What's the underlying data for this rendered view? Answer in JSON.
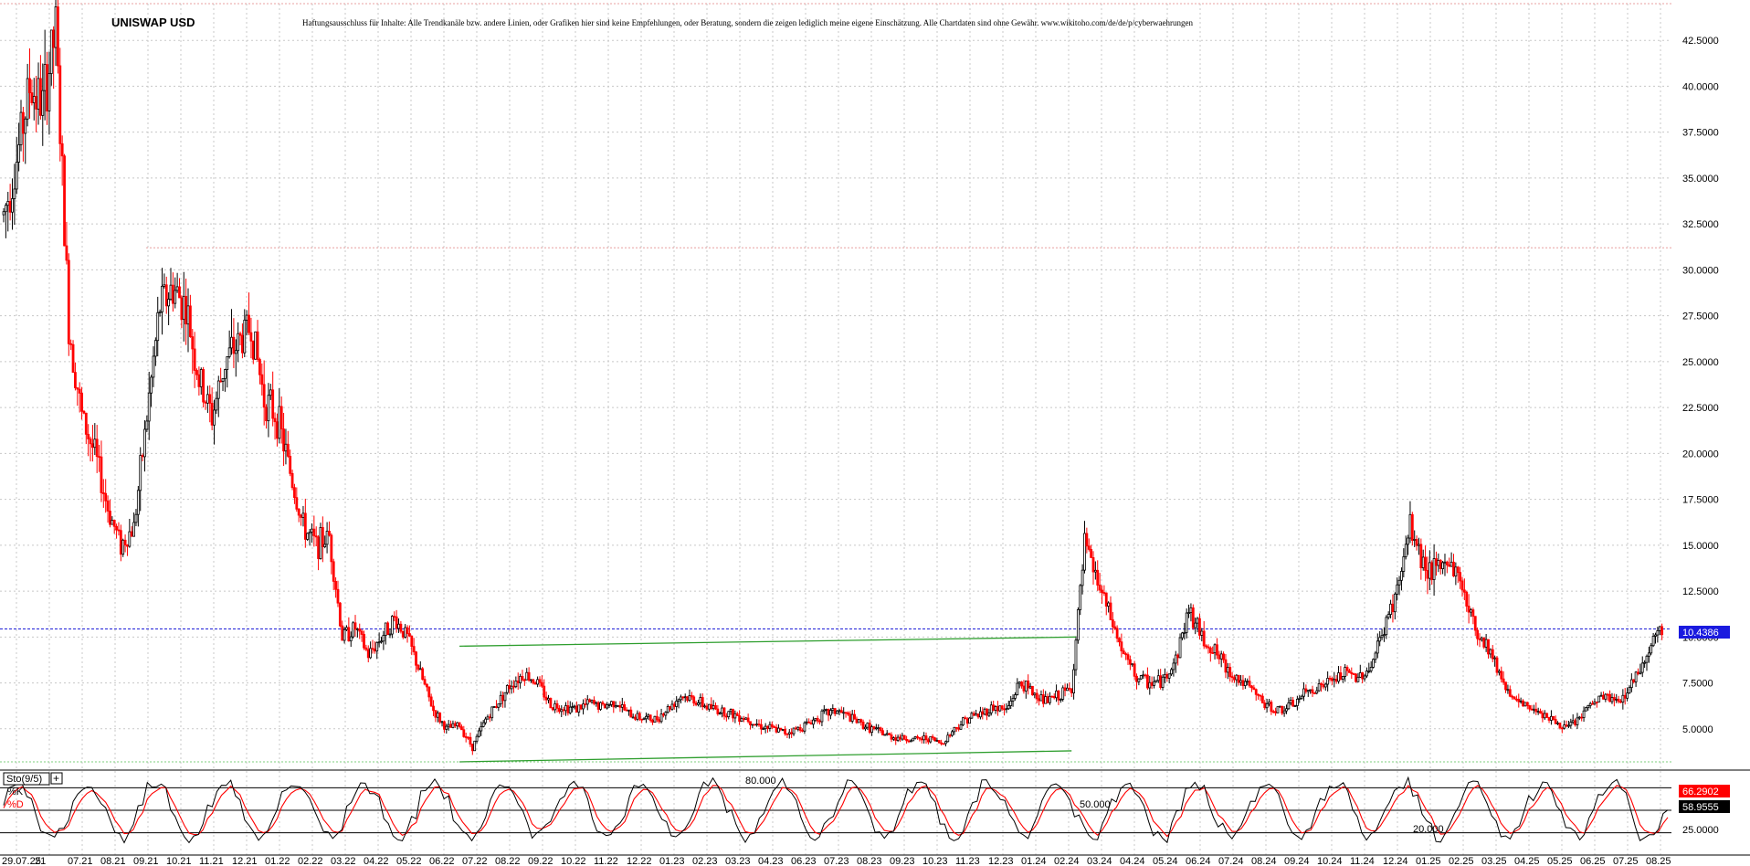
{
  "chart_data": {
    "type": "candlestick",
    "title": "UNISWAP USD",
    "disclaimer": "Haftungsausschluss für Inhalte: Alle Trendkanäle bzw. andere Linien, oder Grafiken hier sind keine Empfehlungen, oder Beratung, sondern die zeigen lediglich meine eigene Einschätzung. Alle Chartdaten sind ohne Gewähr.  www.wikitoho.com/de/de/p/cyberwaehrungen",
    "ylim": [
      3.0,
      44.5
    ],
    "y_ticks": [
      "42.5000",
      "40.0000",
      "37.5000",
      "35.0000",
      "32.5000",
      "30.0000",
      "27.5000",
      "25.0000",
      "22.5000",
      "20.0000",
      "17.5000",
      "15.0000",
      "12.5000",
      "10.0000",
      "7.5000",
      "5.0000"
    ],
    "x_labels": [
      "29.07.25",
      "21",
      "07.21",
      "08.21",
      "09.21",
      "10.21",
      "11.21",
      "12.21",
      "01.22",
      "02.22",
      "03.22",
      "04.22",
      "05.22",
      "06.22",
      "07.22",
      "08.22",
      "09.22",
      "10.22",
      "11.22",
      "12.22",
      "01.23",
      "02.23",
      "03.23",
      "04.23",
      "06.23",
      "07.23",
      "08.23",
      "09.23",
      "10.23",
      "11.23",
      "12.23",
      "01.24",
      "02.24",
      "03.24",
      "04.24",
      "05.24",
      "06.24",
      "07.24",
      "08.24",
      "09.24",
      "10.24",
      "11.24",
      "12.24",
      "01.25",
      "02.25",
      "03.25",
      "04.25",
      "05.25",
      "06.25",
      "07.25",
      "08.25"
    ],
    "last_price": "10.4386",
    "last_price_value": 10.4386,
    "resistance_level": 31.2,
    "green_level": 3.2,
    "price_path": [
      [
        0,
        33
      ],
      [
        6,
        36
      ],
      [
        12,
        40
      ],
      [
        18,
        39
      ],
      [
        24,
        43
      ],
      [
        30,
        27
      ],
      [
        36,
        22
      ],
      [
        42,
        20
      ],
      [
        48,
        17
      ],
      [
        54,
        15
      ],
      [
        60,
        16
      ],
      [
        66,
        22
      ],
      [
        72,
        28
      ],
      [
        78,
        29
      ],
      [
        84,
        28
      ],
      [
        90,
        24
      ],
      [
        96,
        22
      ],
      [
        102,
        25
      ],
      [
        108,
        26
      ],
      [
        114,
        27
      ],
      [
        120,
        23
      ],
      [
        126,
        22
      ],
      [
        132,
        19
      ],
      [
        138,
        16
      ],
      [
        144,
        15
      ],
      [
        150,
        15.5
      ],
      [
        156,
        10
      ],
      [
        162,
        10.5
      ],
      [
        168,
        9
      ],
      [
        174,
        10
      ],
      [
        180,
        11
      ],
      [
        186,
        10
      ],
      [
        192,
        8
      ],
      [
        198,
        6
      ],
      [
        204,
        5
      ],
      [
        210,
        5.2
      ],
      [
        216,
        4
      ],
      [
        222,
        5.5
      ],
      [
        228,
        6.5
      ],
      [
        234,
        7.5
      ],
      [
        240,
        8
      ],
      [
        246,
        7.5
      ],
      [
        252,
        6.3
      ],
      [
        258,
        6.2
      ],
      [
        264,
        6.1
      ],
      [
        270,
        6.4
      ],
      [
        276,
        6.2
      ],
      [
        282,
        6.5
      ],
      [
        288,
        5.8
      ],
      [
        294,
        5.6
      ],
      [
        300,
        5.5
      ],
      [
        306,
        6.1
      ],
      [
        312,
        6.8
      ],
      [
        318,
        6.6
      ],
      [
        324,
        6.2
      ],
      [
        330,
        6.0
      ],
      [
        336,
        5.8
      ],
      [
        342,
        5.6
      ],
      [
        348,
        5.2
      ],
      [
        354,
        5.0
      ],
      [
        360,
        4.8
      ],
      [
        366,
        5.0
      ],
      [
        372,
        5.4
      ],
      [
        378,
        5.8
      ],
      [
        384,
        6.0
      ],
      [
        390,
        5.6
      ],
      [
        396,
        5.2
      ],
      [
        402,
        4.9
      ],
      [
        408,
        4.6
      ],
      [
        414,
        4.5
      ],
      [
        420,
        4.4
      ],
      [
        426,
        4.5
      ],
      [
        432,
        4.2
      ],
      [
        438,
        5.0
      ],
      [
        444,
        5.6
      ],
      [
        450,
        5.8
      ],
      [
        456,
        6.2
      ],
      [
        462,
        6.0
      ],
      [
        468,
        7.5
      ],
      [
        474,
        7.0
      ],
      [
        480,
        6.5
      ],
      [
        486,
        6.8
      ],
      [
        492,
        7.2
      ],
      [
        498,
        15.0
      ],
      [
        504,
        13.0
      ],
      [
        510,
        11.0
      ],
      [
        516,
        9.0
      ],
      [
        522,
        7.8
      ],
      [
        528,
        7.5
      ],
      [
        534,
        7.6
      ],
      [
        540,
        8.8
      ],
      [
        546,
        11.5
      ],
      [
        552,
        10.0
      ],
      [
        558,
        9.2
      ],
      [
        564,
        8.2
      ],
      [
        570,
        7.6
      ],
      [
        576,
        7.0
      ],
      [
        582,
        6.2
      ],
      [
        588,
        6.0
      ],
      [
        594,
        6.3
      ],
      [
        600,
        7.0
      ],
      [
        606,
        7.3
      ],
      [
        612,
        7.6
      ],
      [
        618,
        8.0
      ],
      [
        624,
        7.8
      ],
      [
        630,
        8.4
      ],
      [
        636,
        10.5
      ],
      [
        642,
        12.5
      ],
      [
        648,
        16.0
      ],
      [
        654,
        14.0
      ],
      [
        660,
        13.5
      ],
      [
        666,
        14.2
      ],
      [
        672,
        12.8
      ],
      [
        678,
        10.4
      ],
      [
        684,
        9.5
      ],
      [
        690,
        7.8
      ],
      [
        696,
        6.5
      ],
      [
        702,
        6.2
      ],
      [
        708,
        6.0
      ],
      [
        714,
        5.4
      ],
      [
        720,
        5.0
      ],
      [
        726,
        5.6
      ],
      [
        732,
        6.4
      ],
      [
        738,
        6.8
      ],
      [
        744,
        6.4
      ],
      [
        750,
        7.5
      ],
      [
        756,
        8.8
      ],
      [
        762,
        10.4
      ]
    ],
    "support_line": {
      "x": [
        210,
        492
      ],
      "y": [
        3.2,
        3.8
      ]
    },
    "channel_top": {
      "x": [
        210,
        494
      ],
      "y": [
        9.5,
        10.0
      ]
    },
    "indicator": {
      "name": "Sto(9/5)",
      "k_label": "%K",
      "d_label": "%D",
      "k_value": "66.2902",
      "d_value": "58.9555",
      "levels": [
        80,
        50,
        20
      ],
      "level_labels": [
        "80.000",
        "50.000",
        "20.000"
      ],
      "tick_label": "25.0000"
    }
  },
  "colors": {
    "up_candle": "#000000",
    "down_candle": "#ff0000",
    "grid": "#c8c8c8",
    "last_price_line": "#1f1fd8",
    "last_price_badge": "#1a1adf",
    "trend_line": "#2e9e2e",
    "resistance_line": "#e8a0a0",
    "k_line": "#000000",
    "d_line": "#ff0000",
    "k_badge": "#ff0000",
    "d_badge": "#000000"
  }
}
